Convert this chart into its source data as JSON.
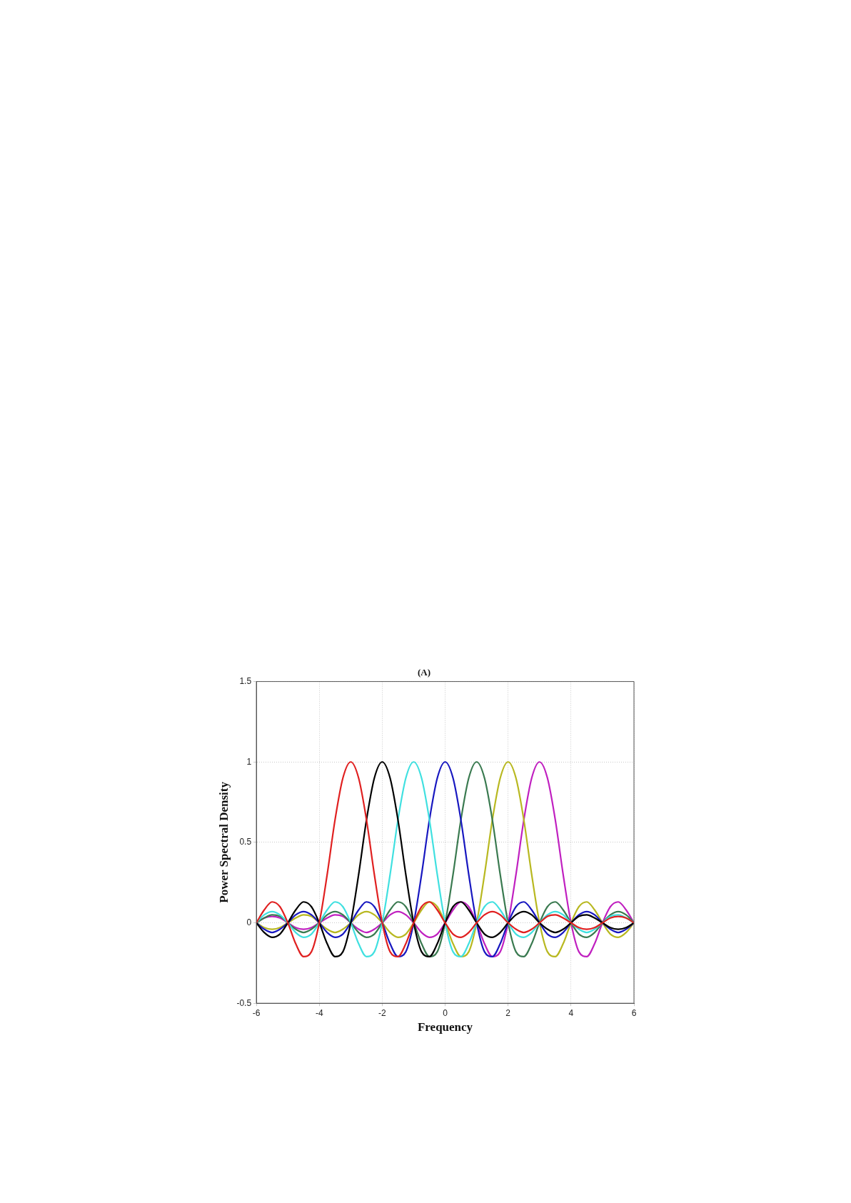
{
  "chart_data": {
    "type": "line",
    "title": "(A)",
    "xlabel": "Frequency",
    "ylabel": "Power Spectral Density",
    "x": [
      -6,
      -5.75,
      -5.5,
      -5.25,
      -5,
      -4.75,
      -4.5,
      -4.25,
      -4,
      -3.75,
      -3.5,
      -3.25,
      -3,
      -2.75,
      -2.5,
      -2.25,
      -2,
      -1.75,
      -1.5,
      -1.25,
      -1,
      -0.75,
      -0.5,
      -0.25,
      0,
      0.25,
      0.5,
      0.75,
      1,
      1.25,
      1.5,
      1.75,
      2,
      2.25,
      2.5,
      2.75,
      3,
      3.25,
      3.5,
      3.75,
      4,
      4.25,
      4.5,
      4.75,
      5,
      5.25,
      5.5,
      5.75,
      6
    ],
    "xlim": [
      -6,
      6
    ],
    "xticks": [
      -6,
      -4,
      -2,
      0,
      2,
      4,
      6
    ],
    "ylim": [
      -0.5,
      1.5
    ],
    "yticks": [
      -0.5,
      0,
      0.5,
      1,
      1.5
    ],
    "grid": true,
    "line_style": "solid",
    "series": [
      {
        "color": "#e02020",
        "values": [
          0,
          0.08,
          0.13,
          0.1,
          0,
          -0.13,
          -0.21,
          -0.18,
          0,
          0.3,
          0.64,
          0.9,
          1,
          0.9,
          0.64,
          0.3,
          0,
          -0.18,
          -0.21,
          -0.13,
          0,
          0.1,
          0.13,
          0.08,
          0,
          -0.07,
          -0.09,
          -0.06,
          0,
          0.05,
          0.07,
          0.05,
          0,
          -0.04,
          -0.06,
          -0.04,
          0,
          0.04,
          0.05,
          0.03,
          0,
          -0.03,
          -0.04,
          -0.03,
          0,
          0.03,
          0.04,
          0.03,
          0
        ]
      },
      {
        "color": "#000000",
        "values": [
          0,
          -0.06,
          -0.09,
          -0.07,
          0,
          0.08,
          0.13,
          0.1,
          0,
          -0.13,
          -0.21,
          -0.18,
          0,
          0.3,
          0.64,
          0.9,
          1,
          0.9,
          0.64,
          0.3,
          0,
          -0.18,
          -0.21,
          -0.13,
          0,
          0.1,
          0.13,
          0.08,
          0,
          -0.07,
          -0.09,
          -0.06,
          0,
          0.05,
          0.07,
          0.05,
          0,
          -0.04,
          -0.06,
          -0.04,
          0,
          0.04,
          0.05,
          0.03,
          0,
          -0.03,
          -0.04,
          -0.03,
          0
        ]
      },
      {
        "color": "#40e0e0",
        "values": [
          0,
          0.05,
          0.07,
          0.05,
          0,
          -0.06,
          -0.09,
          -0.07,
          0,
          0.08,
          0.13,
          0.1,
          0,
          -0.13,
          -0.21,
          -0.18,
          0,
          0.3,
          0.64,
          0.9,
          1,
          0.9,
          0.64,
          0.3,
          0,
          -0.18,
          -0.21,
          -0.13,
          0,
          0.1,
          0.13,
          0.08,
          0,
          -0.07,
          -0.09,
          -0.06,
          0,
          0.05,
          0.07,
          0.05,
          0,
          -0.04,
          -0.06,
          -0.04,
          0,
          0.04,
          0.05,
          0.03,
          0
        ]
      },
      {
        "color": "#1818c0",
        "values": [
          0,
          -0.04,
          -0.06,
          -0.04,
          0,
          0.05,
          0.07,
          0.05,
          0,
          -0.06,
          -0.09,
          -0.07,
          0,
          0.08,
          0.13,
          0.1,
          0,
          -0.13,
          -0.21,
          -0.18,
          0,
          0.3,
          0.64,
          0.9,
          1,
          0.9,
          0.64,
          0.3,
          0,
          -0.18,
          -0.21,
          -0.13,
          0,
          0.1,
          0.13,
          0.08,
          0,
          -0.07,
          -0.09,
          -0.06,
          0,
          0.05,
          0.07,
          0.05,
          0,
          -0.04,
          -0.06,
          -0.04,
          0
        ]
      },
      {
        "color": "#3a7a50",
        "values": [
          0,
          0.03,
          0.05,
          0.04,
          0,
          -0.04,
          -0.06,
          -0.04,
          0,
          0.05,
          0.07,
          0.05,
          0,
          -0.06,
          -0.09,
          -0.07,
          0,
          0.08,
          0.13,
          0.1,
          0,
          -0.13,
          -0.21,
          -0.18,
          0,
          0.3,
          0.64,
          0.9,
          1,
          0.9,
          0.64,
          0.3,
          0,
          -0.18,
          -0.21,
          -0.13,
          0,
          0.1,
          0.13,
          0.08,
          0,
          -0.07,
          -0.09,
          -0.06,
          0,
          0.05,
          0.07,
          0.05,
          0
        ]
      },
      {
        "color": "#b8b820",
        "values": [
          0,
          -0.03,
          -0.04,
          -0.03,
          0,
          0.03,
          0.05,
          0.04,
          0,
          -0.04,
          -0.06,
          -0.04,
          0,
          0.05,
          0.07,
          0.05,
          0,
          -0.06,
          -0.09,
          -0.07,
          0,
          0.08,
          0.13,
          0.1,
          0,
          -0.13,
          -0.21,
          -0.18,
          0,
          0.3,
          0.64,
          0.9,
          1,
          0.9,
          0.64,
          0.3,
          0,
          -0.18,
          -0.21,
          -0.13,
          0,
          0.1,
          0.13,
          0.08,
          0,
          -0.07,
          -0.09,
          -0.06,
          0
        ]
      },
      {
        "color": "#c020c0",
        "values": [
          0,
          0.03,
          0.04,
          0.03,
          0,
          -0.03,
          -0.04,
          -0.03,
          0,
          0.03,
          0.05,
          0.04,
          0,
          -0.04,
          -0.06,
          -0.04,
          0,
          0.05,
          0.07,
          0.05,
          0,
          -0.06,
          -0.09,
          -0.07,
          0,
          0.08,
          0.13,
          0.1,
          0,
          -0.13,
          -0.21,
          -0.18,
          0,
          0.3,
          0.64,
          0.9,
          1,
          0.9,
          0.64,
          0.3,
          0,
          -0.18,
          -0.21,
          -0.13,
          0,
          0.1,
          0.13,
          0.08,
          0
        ]
      }
    ]
  }
}
